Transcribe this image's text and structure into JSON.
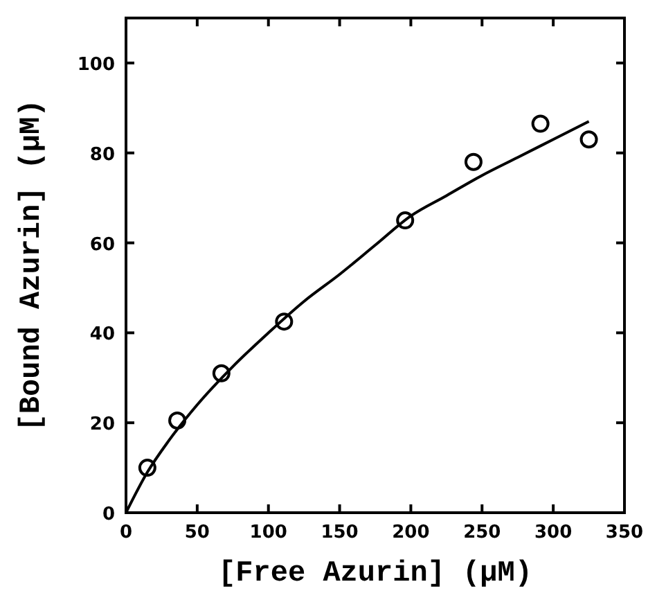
{
  "chart_data": {
    "type": "scatter",
    "xlabel": "[Free Azurin] (μM)",
    "ylabel": "[Bound Azurin] (μM)",
    "xlim": [
      0,
      350
    ],
    "ylim": [
      0,
      110
    ],
    "xticks": [
      0,
      50,
      100,
      150,
      200,
      250,
      300,
      350
    ],
    "yticks": [
      0,
      20,
      40,
      60,
      80,
      100
    ],
    "grid": false,
    "series": [
      {
        "color": "#000000",
        "marker": "circle",
        "x": [
          15,
          36,
          67,
          111,
          196,
          244,
          291,
          325
        ],
        "values": [
          10,
          20.5,
          31,
          42.5,
          65,
          78,
          86.5,
          83
        ]
      },
      {
        "type": "line",
        "color": "#000000",
        "line_style": "solid",
        "x": [
          0,
          15,
          30,
          50,
          75,
          100,
          125,
          150,
          175,
          200,
          225,
          250,
          275,
          300,
          325
        ],
        "values": [
          0,
          9,
          16,
          24,
          32.5,
          40,
          47,
          53,
          59.5,
          66,
          70.5,
          75,
          79,
          83,
          87
        ]
      }
    ]
  }
}
